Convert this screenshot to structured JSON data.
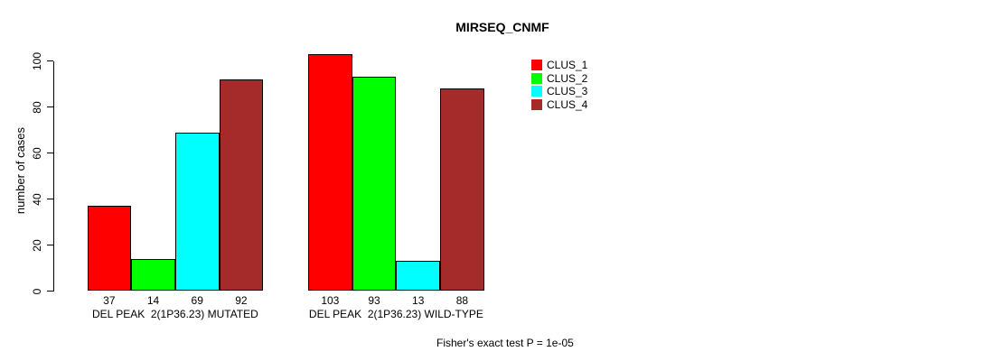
{
  "chart_data": {
    "type": "bar",
    "title": "MIRSEQ_CNMF",
    "ylabel": "number of cases",
    "xlabel": "",
    "ylim": [
      0,
      100
    ],
    "yticks": [
      0,
      20,
      40,
      60,
      80,
      100
    ],
    "grid": false,
    "legend_position": "right",
    "groups": [
      "DEL PEAK  2(1P36.23) MUTATED",
      "DEL PEAK  2(1P36.23) WILD-TYPE"
    ],
    "series": [
      {
        "name": "CLUS_1",
        "color": "#FF0000",
        "values": [
          37,
          103
        ]
      },
      {
        "name": "CLUS_2",
        "color": "#00FF00",
        "values": [
          14,
          93
        ]
      },
      {
        "name": "CLUS_3",
        "color": "#00FFFF",
        "values": [
          69,
          13
        ]
      },
      {
        "name": "CLUS_4",
        "color": "#A52A2A",
        "values": [
          92,
          88
        ]
      }
    ],
    "bar_value_labels_visible": true,
    "annotation": "Fisher's exact test P = 1e-05",
    "colors": {
      "background": "#FFFFFF",
      "axis": "#000000",
      "bar_border": "#000000"
    }
  }
}
